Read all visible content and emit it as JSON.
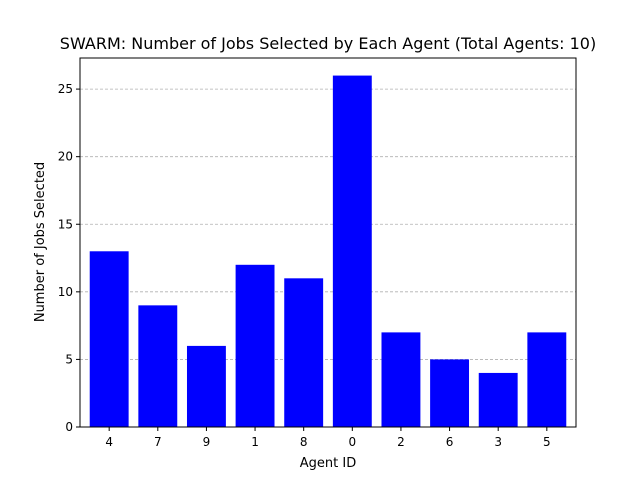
{
  "chart_data": {
    "type": "bar",
    "title": "SWARM: Number of Jobs Selected by Each Agent (Total Agents: 10)",
    "xlabel": "Agent ID",
    "ylabel": "Number of Jobs Selected",
    "categories": [
      "4",
      "7",
      "9",
      "1",
      "8",
      "0",
      "2",
      "6",
      "3",
      "5"
    ],
    "values": [
      13,
      9,
      6,
      12,
      11,
      26,
      7,
      5,
      4,
      7
    ],
    "ylim": [
      0,
      27.3
    ],
    "yticks": [
      0,
      5,
      10,
      15,
      20,
      25
    ],
    "grid": "y-dashed",
    "bar_color": "#0000ff"
  }
}
